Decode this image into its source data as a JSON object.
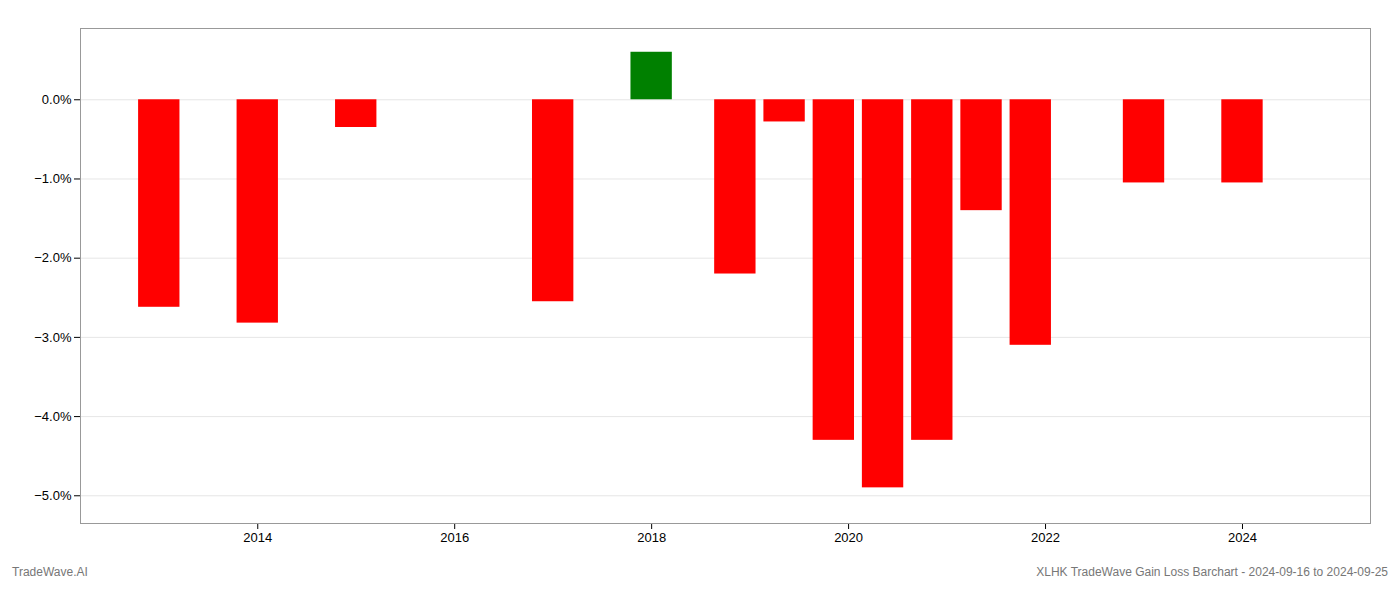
{
  "chart_data": {
    "type": "bar",
    "x": [
      2013.0,
      2014.0,
      2015.0,
      2017.0,
      2018.0,
      2018.85,
      2019.35,
      2019.85,
      2020.35,
      2020.85,
      2021.35,
      2021.85,
      2023.0,
      2024.0
    ],
    "values": [
      -2.62,
      -2.82,
      -0.35,
      -2.55,
      0.6,
      -2.2,
      -0.28,
      -4.3,
      -4.9,
      -4.3,
      -1.4,
      -3.1,
      -1.05,
      -1.05
    ],
    "colors": [
      "red",
      "red",
      "red",
      "red",
      "green",
      "red",
      "red",
      "red",
      "red",
      "red",
      "red",
      "red",
      "red",
      "red"
    ],
    "xlim": [
      2012.2,
      2025.3
    ],
    "ylim": [
      -5.35,
      0.9
    ],
    "xticks": [
      2014,
      2016,
      2018,
      2020,
      2022,
      2024
    ],
    "yticks": [
      {
        "value": 0.0,
        "label": "0.0%"
      },
      {
        "value": -1.0,
        "label": "−1.0%"
      },
      {
        "value": -2.0,
        "label": "−2.0%"
      },
      {
        "value": -3.0,
        "label": "−3.0%"
      },
      {
        "value": -4.0,
        "label": "−4.0%"
      },
      {
        "value": -5.0,
        "label": "−5.0%"
      }
    ],
    "grid": true,
    "annotations": [
      "TradeWave.AI",
      "XLHK TradeWave Gain Loss Barchart - 2024-09-16 to 2024-09-25"
    ]
  }
}
